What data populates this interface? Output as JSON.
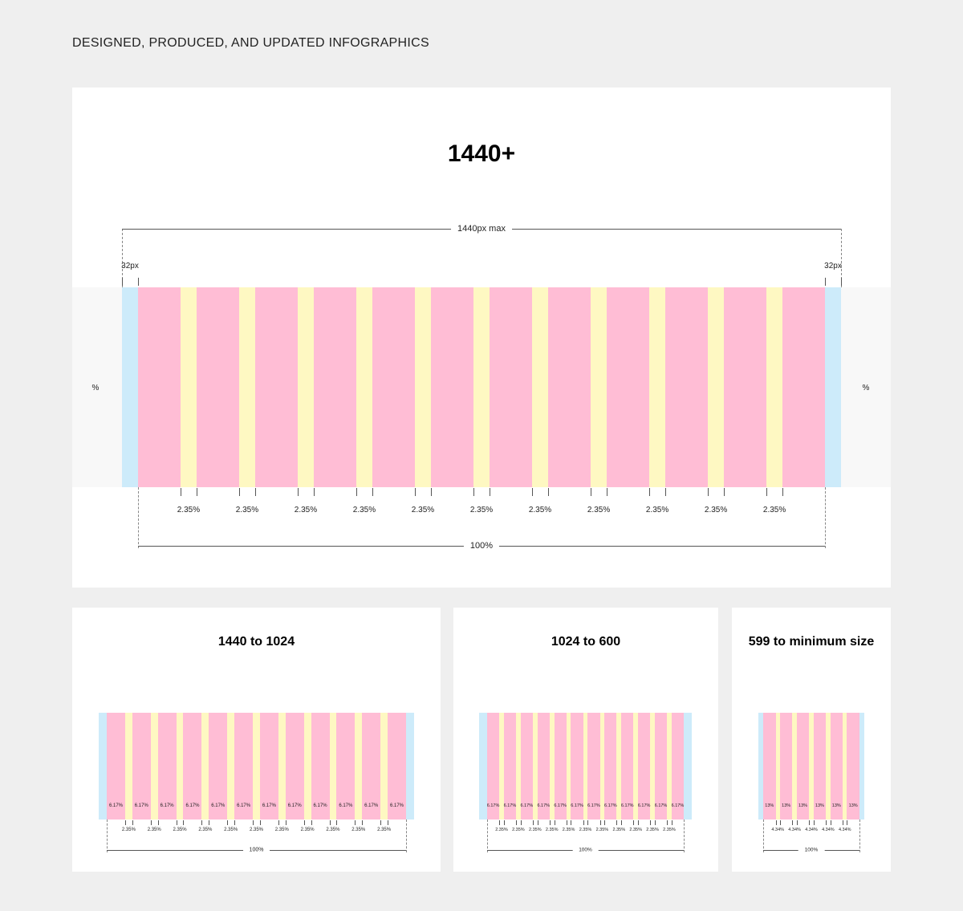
{
  "heading": "DESIGNED, PRODUCED, AND UPDATED INFOGRAPHICS",
  "colors": {
    "column": "#ffbdd5",
    "gutter": "#fef8c2",
    "margin": "#cdebfa",
    "band": "#f8f8f8"
  },
  "panels": [
    {
      "title": "1440+",
      "columns": 12,
      "max_label": "1440px max",
      "margin_label": "32px",
      "side_label": "%",
      "column_label": "",
      "gutter_label": "2.35%",
      "total_label": "100%"
    },
    {
      "title": "1440 to 1024",
      "columns": 12,
      "column_label": "6.17%",
      "gutter_label": "2.35%",
      "total_label": "100%"
    },
    {
      "title": "1024 to 600",
      "columns": 12,
      "column_label": "6.17%",
      "gutter_label": "2.35%",
      "total_label": "100%"
    },
    {
      "title": "599 to minimum size",
      "columns": 6,
      "column_label": "13%",
      "gutter_label": "4.34%",
      "total_label": "100%"
    }
  ]
}
